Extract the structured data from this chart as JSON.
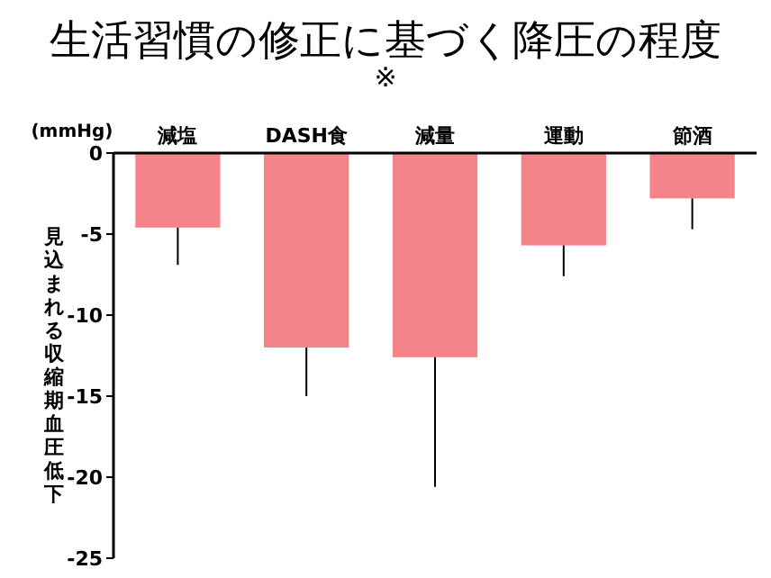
{
  "chart_data": {
    "type": "bar",
    "title": "生活習慣の修正に基づく降圧の程度",
    "subtitle": "※",
    "ylabel": "見込まれる収縮期血圧低下",
    "annotations": [
      "(mmHg)"
    ],
    "categories": [
      "減塩",
      "DASH食",
      "減量",
      "運動",
      "節酒"
    ],
    "values": [
      -4.6,
      -12,
      -12.6,
      -5.7,
      -2.8
    ],
    "errors": [
      [
        -6.9,
        -4.6
      ],
      [
        -15,
        -12
      ],
      [
        -20.6,
        -12.6
      ],
      [
        -7.6,
        -5.7
      ],
      [
        -4.7,
        -2.8
      ]
    ],
    "color": "#f4838a",
    "ylim": [
      -25,
      0
    ],
    "yticks": [
      0,
      -5,
      -10,
      -15,
      -20,
      -25
    ],
    "grid": false
  }
}
